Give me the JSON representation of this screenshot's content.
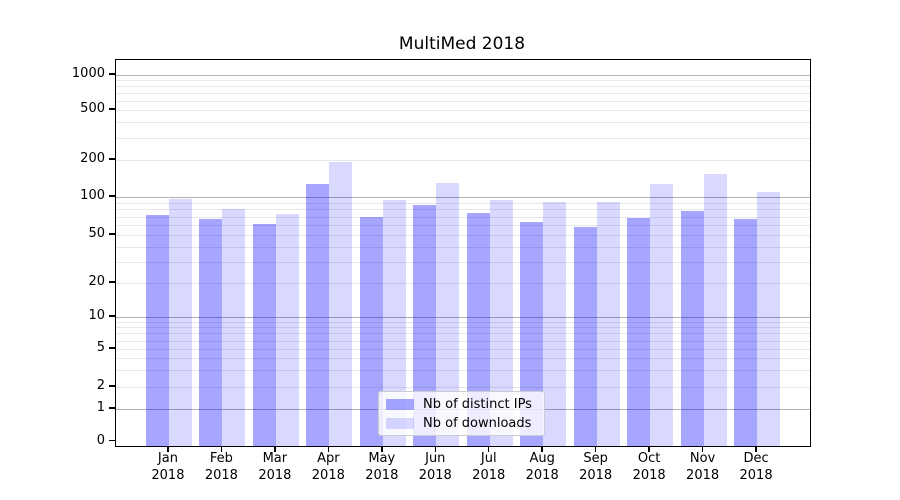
{
  "title": "MultiMed 2018",
  "chart_data": {
    "type": "bar",
    "title": "MultiMed 2018",
    "categories": [
      "Jan 2018",
      "Feb 2018",
      "Mar 2018",
      "Apr 2018",
      "May 2018",
      "Jun 2018",
      "Jul 2018",
      "Aug 2018",
      "Sep 2018",
      "Oct 2018",
      "Nov 2018",
      "Dec 2018"
    ],
    "x_tick_month": [
      "Jan",
      "Feb",
      "Mar",
      "Apr",
      "May",
      "Jun",
      "Jul",
      "Aug",
      "Sep",
      "Oct",
      "Nov",
      "Dec"
    ],
    "x_tick_year": "2018",
    "series": [
      {
        "name": "Nb of distinct IPs",
        "color": "rgba(0,0,255,0.35)",
        "color_on_white": "#a6a6ff",
        "values": [
          72,
          67,
          61,
          128,
          70,
          86,
          75,
          63,
          58,
          68,
          78,
          67
        ]
      },
      {
        "name": "Nb of downloads",
        "color": "rgba(0,0,255,0.15)",
        "color_on_white": "#d9d9ff",
        "values": [
          97,
          80,
          73,
          193,
          94,
          130,
          95,
          91,
          92,
          128,
          155,
          110
        ]
      }
    ],
    "y_ticks": [
      0,
      1,
      2,
      5,
      10,
      20,
      50,
      100,
      200,
      500,
      1000
    ],
    "yscale": "asinh (log-like above 10, compressed toward 0)",
    "ylim": [
      0,
      1300
    ],
    "grid": "horizontal major (decades, gray) and minor (light) lines",
    "legend_position": "inside plot, lower center"
  },
  "colors": {
    "bar_ips": "rgba(0,0,255,0.35)",
    "bar_downloads": "rgba(0,0,255,0.15)",
    "grid_major": "#b0b0b0",
    "grid_minor": "#e7e7e7",
    "axis": "#000000",
    "background": "#ffffff"
  }
}
